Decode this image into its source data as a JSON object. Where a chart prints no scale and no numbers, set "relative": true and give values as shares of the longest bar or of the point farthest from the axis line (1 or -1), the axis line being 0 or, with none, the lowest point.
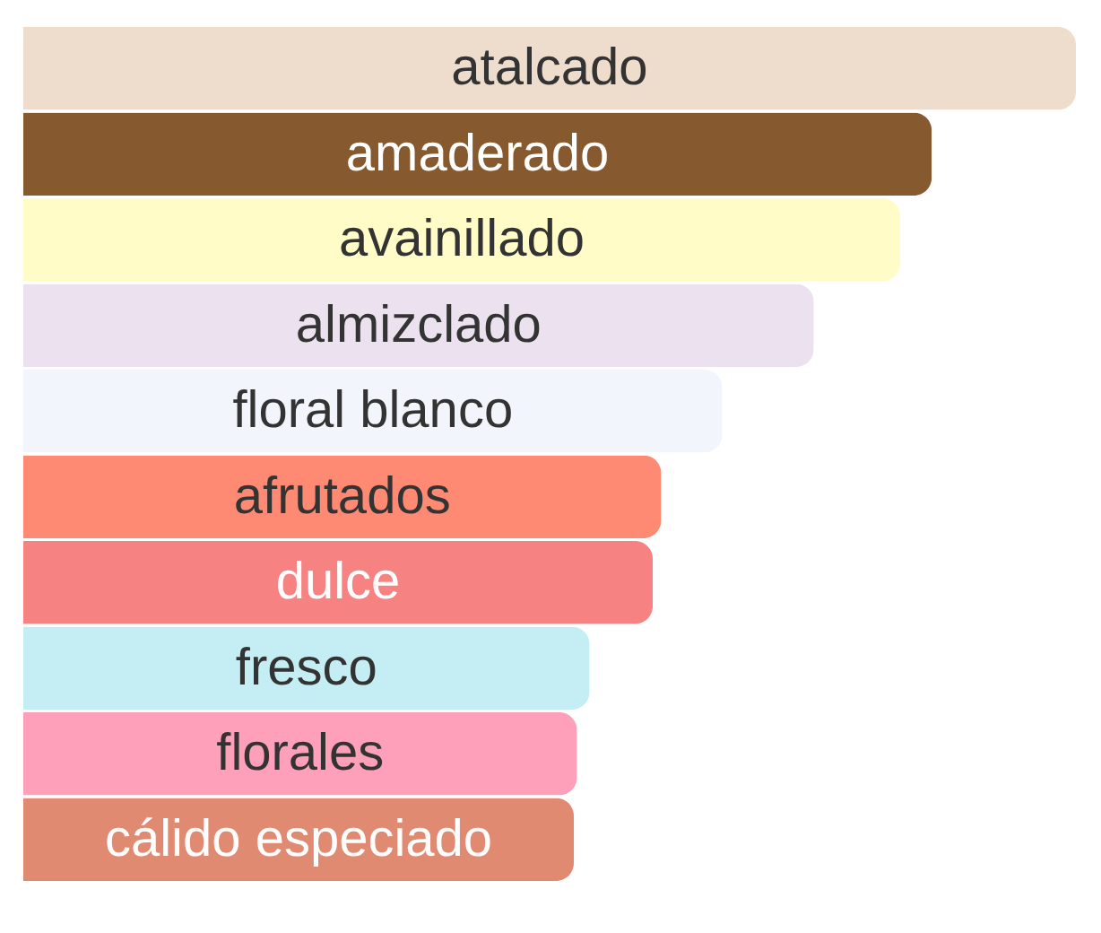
{
  "chart_data": {
    "type": "bar",
    "orientation": "horizontal",
    "relative": true,
    "categories": [
      "atalcado",
      "amaderado",
      "avainillado",
      "almizclado",
      "floral blanco",
      "afrutados",
      "dulce",
      "fresco",
      "florales",
      "cálido especiado"
    ],
    "values": [
      1,
      0.863,
      0.833,
      0.751,
      0.664,
      0.606,
      0.598,
      0.538,
      0.526,
      0.523
    ],
    "colors": [
      "#eeddcc",
      "#87592f",
      "#fffcc8",
      "#ece1ee",
      "#f2f5fc",
      "#ff8a73",
      "#f78282",
      "#c4eef3",
      "#ffa0ba",
      "#e08a72"
    ]
  }
}
